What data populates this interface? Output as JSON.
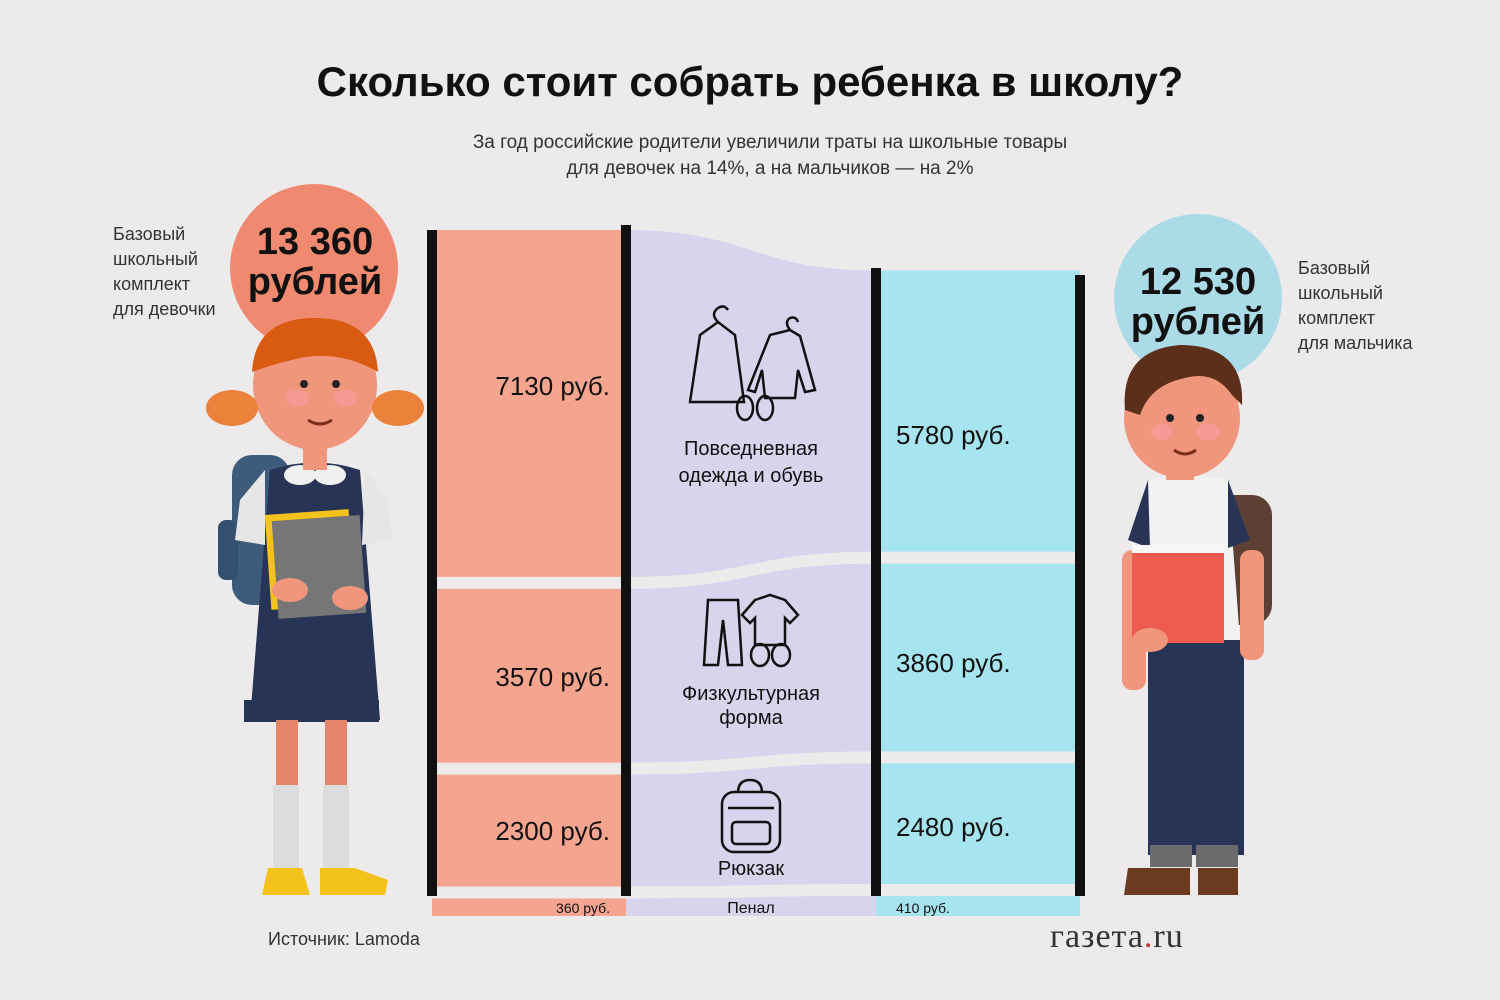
{
  "title": "Сколько стоит собрать ребенка в школу?",
  "subtitle_line1": "За год российские родители увеличили траты на школьные товары",
  "subtitle_line2": "для девочек на 14%, а на мальчиков — на 2%",
  "girl": {
    "label": [
      "Базовый",
      "школьный",
      "комплект",
      "для девочки"
    ],
    "total_line1": "13 360",
    "total_line2": "рублей"
  },
  "boy": {
    "label": [
      "Базовый",
      "школьный",
      "комплект",
      "для мальчика"
    ],
    "total_line1": "12 530",
    "total_line2": "рублей"
  },
  "source": "Источник: Lamoda",
  "brand_main": "газета",
  "brand_dot": ".",
  "brand_tld": "ru",
  "colors": {
    "girl": "#f5a58f",
    "category": "#d9d3ec",
    "boy": "#a6e4ef",
    "girl_circle": "#ef8a71",
    "boy_circle": "#aadbe6",
    "bar": "#111111"
  },
  "chart_data": {
    "type": "sankey",
    "categories": [
      "Повседневная одежда и обувь",
      "Физкультурная форма",
      "Рюкзак",
      "Пенал"
    ],
    "category_icons": [
      "clothes-icon",
      "sportswear-icon",
      "backpack-icon",
      ""
    ],
    "series": [
      {
        "name": "девочки",
        "values": [
          7130,
          3570,
          2300,
          360
        ],
        "labels": [
          "7130 руб.",
          "3570 руб.",
          "2300 руб.",
          "360 руб."
        ]
      },
      {
        "name": "мальчики",
        "values": [
          5780,
          3860,
          2480,
          410
        ],
        "labels": [
          "5780 руб.",
          "3860 руб.",
          "2480 руб.",
          "410 руб."
        ]
      }
    ],
    "totals": [
      13360,
      12530
    ]
  }
}
